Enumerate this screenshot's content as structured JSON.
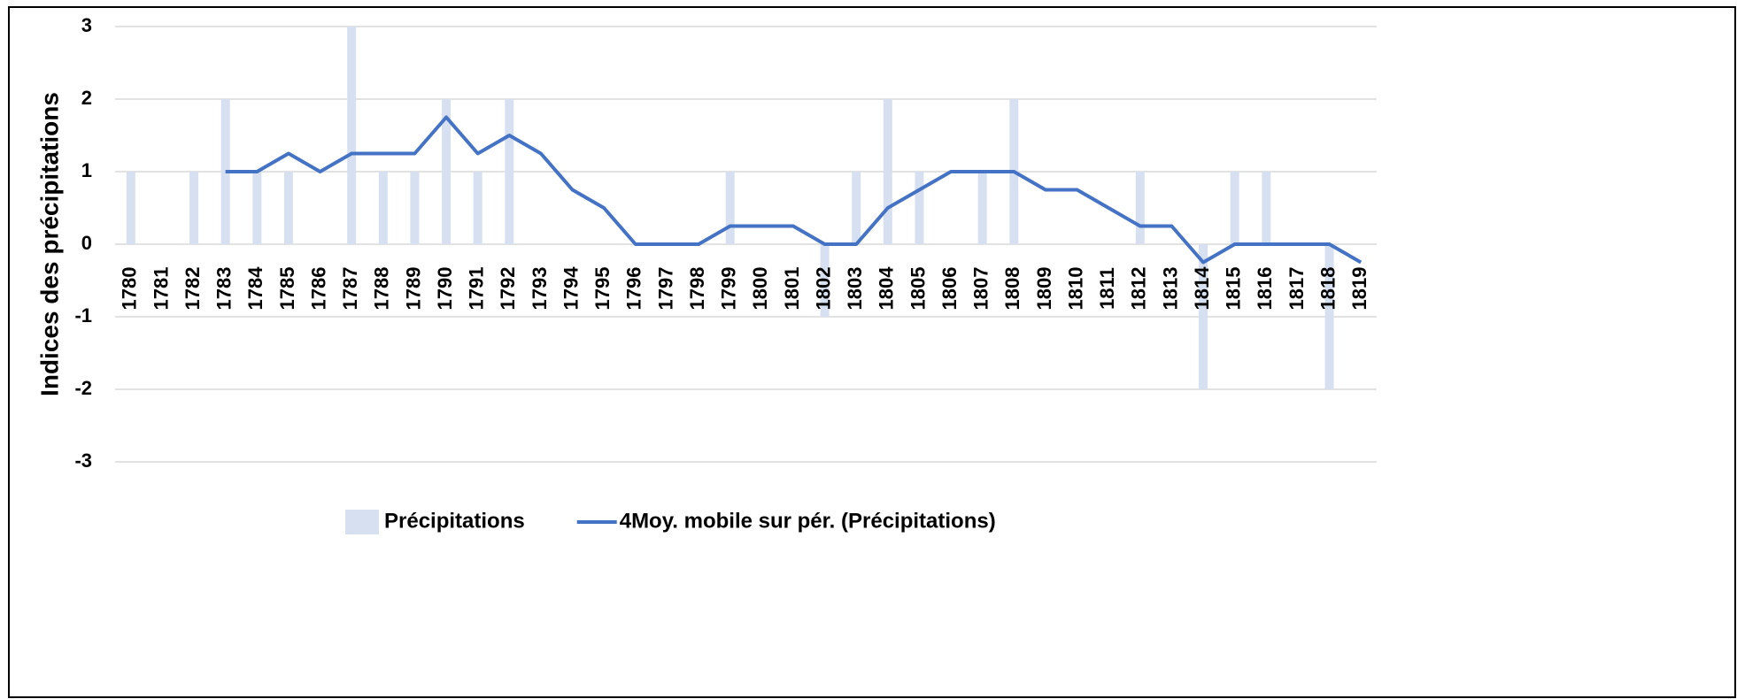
{
  "chart_data": {
    "type": "bar+line",
    "y_label": "Indices des précipitations",
    "categories": [
      "1780",
      "1781",
      "1782",
      "1783",
      "1784",
      "1785",
      "1786",
      "1787",
      "1788",
      "1789",
      "1790",
      "1791",
      "1792",
      "1793",
      "1794",
      "1795",
      "1796",
      "1797",
      "1798",
      "1799",
      "1800",
      "1801",
      "1802",
      "1803",
      "1804",
      "1805",
      "1806",
      "1807",
      "1808",
      "1809",
      "1810",
      "1811",
      "1812",
      "1813",
      "1814",
      "1815",
      "1816",
      "1817",
      "1818",
      "1819"
    ],
    "series": [
      {
        "name": "Précipitations",
        "type": "bar",
        "color": "#d6e0f1",
        "values": [
          1,
          0,
          1,
          2,
          1,
          1,
          0,
          3,
          1,
          1,
          2,
          1,
          2,
          0,
          0,
          0,
          0,
          0,
          0,
          1,
          0,
          0,
          -1,
          1,
          2,
          1,
          0,
          1,
          2,
          0,
          0,
          0,
          1,
          0,
          -2,
          1,
          1,
          0,
          -2,
          0
        ]
      },
      {
        "name": "4Moy. mobile sur pér.  (Précipitations)",
        "type": "line",
        "color": "#4472c4",
        "values": [
          null,
          null,
          null,
          1,
          1,
          1.25,
          1,
          1.25,
          1.25,
          1.25,
          1.75,
          1.25,
          1.5,
          1.25,
          0.75,
          0.5,
          0,
          0,
          0,
          0.25,
          0.25,
          0.25,
          0,
          0,
          0.5,
          0.75,
          1,
          1,
          1,
          0.75,
          0.75,
          0.5,
          0.25,
          0.25,
          -0.25,
          0,
          0,
          0,
          0,
          -0.25
        ]
      }
    ],
    "ylim": [
      -3,
      3
    ],
    "yticks": [
      -3,
      -2,
      -1,
      0,
      1,
      2,
      3
    ],
    "grid": true,
    "legend": "bottom"
  }
}
